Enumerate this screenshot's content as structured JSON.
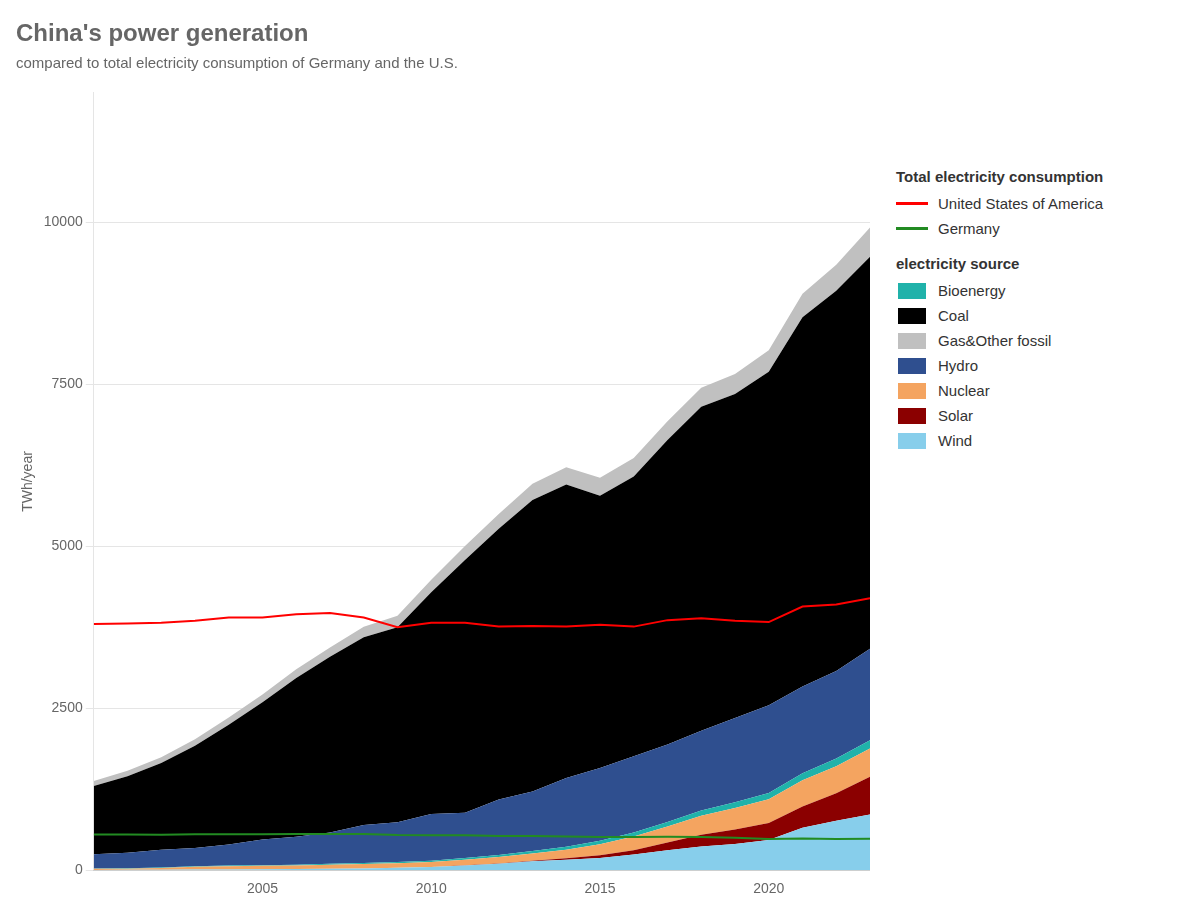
{
  "chart_data": {
    "type": "area",
    "title": "China's power generation",
    "subtitle": "compared to total electricity consumption of Germany and the U.S.",
    "y_label": "TWh/year",
    "x": [
      2000,
      2001,
      2002,
      2003,
      2004,
      2005,
      2006,
      2007,
      2008,
      2009,
      2010,
      2011,
      2012,
      2013,
      2014,
      2015,
      2016,
      2017,
      2018,
      2019,
      2020,
      2021,
      2022,
      2023
    ],
    "series": [
      {
        "name": "Wind",
        "type": "area",
        "color": "#87CEEB",
        "values": [
          5,
          6,
          8,
          10,
          12,
          14,
          17,
          22,
          28,
          38,
          50,
          74,
          100,
          138,
          160,
          190,
          241,
          308,
          366,
          406,
          467,
          655,
          762,
          860
        ]
      },
      {
        "name": "Solar",
        "type": "area",
        "color": "#8B0000",
        "values": [
          0,
          0,
          0,
          0,
          0,
          0,
          0,
          0,
          0,
          0,
          1,
          2,
          4,
          9,
          23,
          40,
          67,
          120,
          180,
          224,
          261,
          327,
          425,
          584
        ]
      },
      {
        "name": "Nuclear",
        "type": "area",
        "color": "#F4A460",
        "values": [
          16,
          17,
          25,
          43,
          50,
          53,
          54,
          62,
          68,
          70,
          74,
          87,
          98,
          111,
          133,
          171,
          213,
          248,
          295,
          330,
          366,
          408,
          418,
          433
        ]
      },
      {
        "name": "Bioenergy",
        "type": "area",
        "color": "#20B2AA",
        "values": [
          5,
          6,
          7,
          8,
          9,
          10,
          12,
          14,
          16,
          18,
          22,
          27,
          32,
          38,
          45,
          52,
          60,
          68,
          79,
          89,
          97,
          107,
          118,
          130
        ]
      },
      {
        "name": "Hydro",
        "type": "area",
        "color": "#2F4F8F",
        "values": [
          222,
          241,
          275,
          280,
          325,
          397,
          435,
          485,
          585,
          615,
          722,
          698,
          856,
          920,
          1064,
          1126,
          1178,
          1195,
          1232,
          1302,
          1355,
          1340,
          1352,
          1413
        ]
      },
      {
        "name": "Coal",
        "type": "area",
        "color": "#000000",
        "values": [
          1050,
          1180,
          1340,
          1580,
          1850,
          2120,
          2450,
          2710,
          2900,
          3010,
          3420,
          3900,
          4180,
          4500,
          4530,
          4200,
          4320,
          4700,
          5000,
          5000,
          5150,
          5700,
          5870,
          6050
        ]
      },
      {
        "name": "Gas&Other fossil",
        "type": "area",
        "color": "#C0C0C0",
        "values": [
          80,
          85,
          90,
          100,
          110,
          120,
          135,
          145,
          160,
          175,
          195,
          215,
          230,
          250,
          265,
          280,
          285,
          290,
          295,
          310,
          330,
          360,
          400,
          450
        ]
      },
      {
        "name": "United States of America",
        "type": "line",
        "color": "#ff0000",
        "values": [
          3800,
          3810,
          3820,
          3850,
          3900,
          3900,
          3950,
          3970,
          3900,
          3750,
          3820,
          3820,
          3760,
          3770,
          3760,
          3790,
          3760,
          3860,
          3890,
          3850,
          3830,
          4070,
          4100,
          4200
        ]
      },
      {
        "name": "Germany",
        "type": "line",
        "color": "#228B22",
        "values": [
          550,
          552,
          548,
          553,
          556,
          554,
          558,
          560,
          558,
          543,
          540,
          541,
          528,
          528,
          520,
          512,
          512,
          516,
          513,
          499,
          481,
          490,
          480,
          485
        ]
      }
    ],
    "legend_sections": [
      {
        "title": "Total electricity consumption",
        "names": [
          "United States of America",
          "Germany"
        ]
      },
      {
        "title": "electricity source",
        "names": [
          "Bioenergy",
          "Coal",
          "Gas&Other fossil",
          "Hydro",
          "Nuclear",
          "Solar",
          "Wind"
        ]
      }
    ],
    "xlim": [
      2000,
      2023
    ],
    "xticks": [
      2005,
      2010,
      2015,
      2020
    ],
    "ylim": [
      0,
      12000
    ],
    "yticks": [
      0,
      2500,
      5000,
      7500,
      10000
    ],
    "stacked": true,
    "grid": "y",
    "legend": "right"
  }
}
